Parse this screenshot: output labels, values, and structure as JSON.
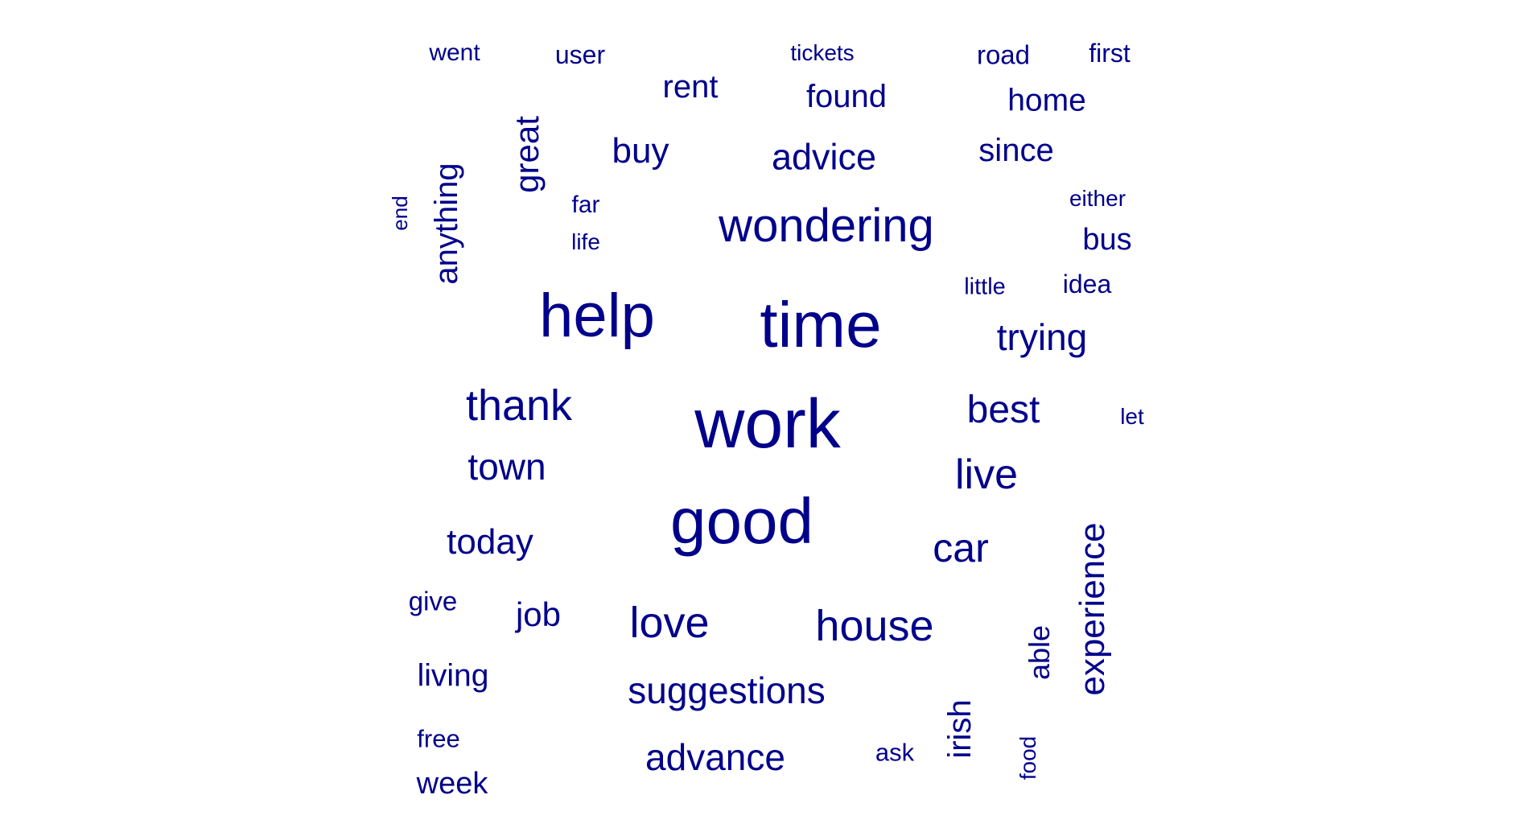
{
  "word_cloud": {
    "color": "#00008b",
    "words": [
      {
        "id": "went",
        "text": "went",
        "orientation": "horizontal"
      },
      {
        "id": "user",
        "text": "user",
        "orientation": "horizontal"
      },
      {
        "id": "tickets",
        "text": "tickets",
        "orientation": "horizontal"
      },
      {
        "id": "road",
        "text": "road",
        "orientation": "horizontal"
      },
      {
        "id": "first",
        "text": "first",
        "orientation": "horizontal"
      },
      {
        "id": "rent",
        "text": "rent",
        "orientation": "horizontal"
      },
      {
        "id": "found",
        "text": "found",
        "orientation": "horizontal"
      },
      {
        "id": "home",
        "text": "home",
        "orientation": "horizontal"
      },
      {
        "id": "great",
        "text": "great",
        "orientation": "vertical"
      },
      {
        "id": "buy",
        "text": "buy",
        "orientation": "horizontal"
      },
      {
        "id": "advice",
        "text": "advice",
        "orientation": "horizontal"
      },
      {
        "id": "since",
        "text": "since",
        "orientation": "horizontal"
      },
      {
        "id": "anything",
        "text": "anything",
        "orientation": "vertical"
      },
      {
        "id": "end",
        "text": "end",
        "orientation": "vertical"
      },
      {
        "id": "far",
        "text": "far",
        "orientation": "horizontal"
      },
      {
        "id": "life",
        "text": "life",
        "orientation": "horizontal"
      },
      {
        "id": "wondering",
        "text": "wondering",
        "orientation": "horizontal"
      },
      {
        "id": "either",
        "text": "either",
        "orientation": "horizontal"
      },
      {
        "id": "bus",
        "text": "bus",
        "orientation": "horizontal"
      },
      {
        "id": "little",
        "text": "little",
        "orientation": "horizontal"
      },
      {
        "id": "idea",
        "text": "idea",
        "orientation": "horizontal"
      },
      {
        "id": "help",
        "text": "help",
        "orientation": "horizontal"
      },
      {
        "id": "time",
        "text": "time",
        "orientation": "horizontal"
      },
      {
        "id": "trying",
        "text": "trying",
        "orientation": "horizontal"
      },
      {
        "id": "thank",
        "text": "thank",
        "orientation": "horizontal"
      },
      {
        "id": "work",
        "text": "work",
        "orientation": "horizontal"
      },
      {
        "id": "best",
        "text": "best",
        "orientation": "horizontal"
      },
      {
        "id": "let",
        "text": "let",
        "orientation": "horizontal"
      },
      {
        "id": "town",
        "text": "town",
        "orientation": "horizontal"
      },
      {
        "id": "live",
        "text": "live",
        "orientation": "horizontal"
      },
      {
        "id": "good",
        "text": "good",
        "orientation": "horizontal"
      },
      {
        "id": "today",
        "text": "today",
        "orientation": "horizontal"
      },
      {
        "id": "car",
        "text": "car",
        "orientation": "horizontal"
      },
      {
        "id": "experience",
        "text": "experience",
        "orientation": "vertical"
      },
      {
        "id": "give",
        "text": "give",
        "orientation": "horizontal"
      },
      {
        "id": "job",
        "text": "job",
        "orientation": "horizontal"
      },
      {
        "id": "love",
        "text": "love",
        "orientation": "horizontal"
      },
      {
        "id": "house",
        "text": "house",
        "orientation": "horizontal"
      },
      {
        "id": "able",
        "text": "able",
        "orientation": "vertical"
      },
      {
        "id": "living",
        "text": "living",
        "orientation": "horizontal"
      },
      {
        "id": "suggestions",
        "text": "suggestions",
        "orientation": "horizontal"
      },
      {
        "id": "irish",
        "text": "irish",
        "orientation": "vertical"
      },
      {
        "id": "free",
        "text": "free",
        "orientation": "horizontal"
      },
      {
        "id": "advance",
        "text": "advance",
        "orientation": "horizontal"
      },
      {
        "id": "ask",
        "text": "ask",
        "orientation": "horizontal"
      },
      {
        "id": "food",
        "text": "food",
        "orientation": "vertical"
      },
      {
        "id": "week",
        "text": "week",
        "orientation": "horizontal"
      }
    ]
  }
}
